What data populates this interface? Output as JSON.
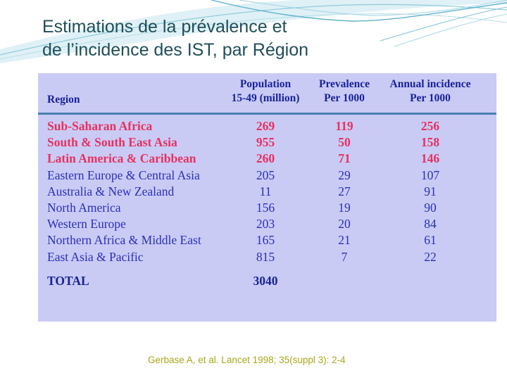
{
  "slide": {
    "title_line1": "Estimations de la prévalence et",
    "title_line2": "de l’incidence des IST, par Région",
    "source": "Gerbase A, et al. Lancet 1998; 35(suppl 3): 2-4"
  },
  "table": {
    "headers": {
      "region": "Region",
      "population_1": "Population",
      "population_2": "15-49 (million)",
      "prevalence_1": "Prevalence",
      "prevalence_2": "Per 1000",
      "incidence_1": "Annual incidence",
      "incidence_2": "Per 1000"
    },
    "rows": [
      {
        "region": "Sub-Saharan Africa",
        "population": "269",
        "prevalence": "119",
        "incidence": "256",
        "highlight": true
      },
      {
        "region": "South & South East Asia",
        "population": "955",
        "prevalence": "50",
        "incidence": "158",
        "highlight": true
      },
      {
        "region": "Latin America & Caribbean",
        "population": "260",
        "prevalence": "71",
        "incidence": "146",
        "highlight": true
      },
      {
        "region": "Eastern Europe & Central Asia",
        "population": "205",
        "prevalence": "29",
        "incidence": "107",
        "highlight": false
      },
      {
        "region": "Australia & New Zealand",
        "population": "11",
        "prevalence": "27",
        "incidence": "91",
        "highlight": false
      },
      {
        "region": "North America",
        "population": "156",
        "prevalence": "19",
        "incidence": "90",
        "highlight": false
      },
      {
        "region": "Western Europe",
        "population": "203",
        "prevalence": "20",
        "incidence": "84",
        "highlight": false
      },
      {
        "region": "Northern Africa & Middle East",
        "population": "165",
        "prevalence": "21",
        "incidence": "61",
        "highlight": false
      },
      {
        "region": "East Asia & Pacific",
        "population": "815",
        "prevalence": "7",
        "incidence": "22",
        "highlight": false
      }
    ],
    "total": {
      "label": "TOTAL",
      "population": "3040"
    }
  },
  "colors": {
    "table_background": "#c9cbf5",
    "highlight_text": "#e8305f",
    "normal_text": "#2b2fb8",
    "header_text": "#1a2298",
    "title_text": "#1f4e59",
    "source_text": "#a8a61a"
  }
}
